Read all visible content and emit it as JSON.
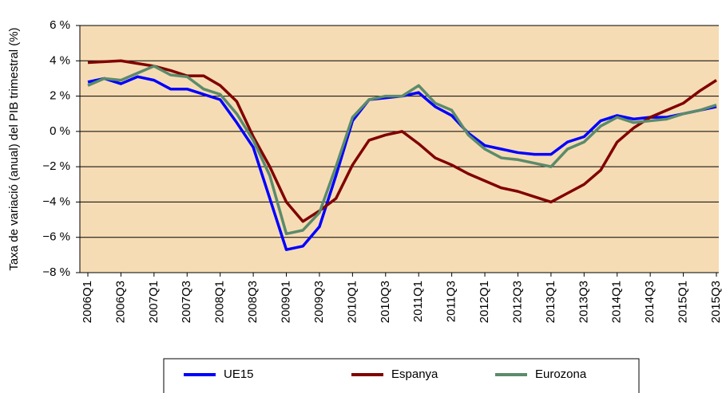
{
  "chart_data": {
    "type": "line",
    "y_label": "Taxa de variació (anual) del PIB trimestral (%)",
    "categories": [
      "2006Q1",
      null,
      "2006Q3",
      null,
      "2007Q1",
      null,
      "2007Q3",
      null,
      "2008Q1",
      null,
      "2008Q3",
      null,
      "2009Q1",
      null,
      "2009Q3",
      null,
      "2010Q1",
      null,
      "2010Q3",
      null,
      "2011Q1",
      null,
      "2011Q3",
      null,
      "2012Q1",
      null,
      "2012Q3",
      null,
      "2013Q1",
      null,
      "2013Q3",
      null,
      "2014Q1",
      null,
      "2014Q3",
      null,
      "2015Q1",
      null,
      "2015Q3"
    ],
    "series": [
      {
        "name": "UE15",
        "color": "#0000ff",
        "values": [
          2.8,
          3.0,
          2.7,
          3.1,
          2.9,
          2.4,
          2.4,
          2.1,
          1.8,
          0.5,
          -0.9,
          -3.8,
          -6.7,
          -6.5,
          -5.4,
          -2.5,
          0.6,
          1.8,
          1.9,
          2.0,
          2.2,
          1.4,
          0.9,
          -0.1,
          -0.8,
          -1.0,
          -1.2,
          -1.3,
          -1.3,
          -0.6,
          -0.3,
          0.6,
          0.9,
          0.7,
          0.8,
          0.8,
          1.0,
          1.2,
          1.4
        ]
      },
      {
        "name": "Espanya",
        "color": "#800000",
        "values": [
          3.9,
          3.95,
          4.0,
          3.85,
          3.7,
          3.45,
          3.15,
          3.15,
          2.6,
          1.7,
          -0.3,
          -2.0,
          -4.0,
          -5.1,
          -4.5,
          -3.8,
          -1.9,
          -0.5,
          -0.2,
          0.0,
          -0.7,
          -1.5,
          -1.9,
          -2.4,
          -2.8,
          -3.2,
          -3.4,
          -3.7,
          -4.0,
          -3.5,
          -3.0,
          -2.2,
          -0.6,
          0.2,
          0.8,
          1.2,
          1.6,
          2.3,
          2.9
        ]
      },
      {
        "name": "Eurozona",
        "color": "#5b8b6b",
        "values": [
          2.6,
          3.0,
          2.9,
          3.3,
          3.7,
          3.2,
          3.1,
          2.4,
          2.1,
          1.0,
          -0.5,
          -2.5,
          -5.8,
          -5.6,
          -4.6,
          -2.0,
          0.8,
          1.8,
          2.0,
          2.0,
          2.6,
          1.6,
          1.2,
          -0.2,
          -1.0,
          -1.5,
          -1.6,
          -1.8,
          -2.0,
          -1.0,
          -0.6,
          0.3,
          0.8,
          0.5,
          0.6,
          0.7,
          1.0,
          1.2,
          1.5
        ]
      }
    ],
    "ylim": [
      -8,
      6
    ],
    "yticks": [
      {
        "value": -8,
        "label": "−8 %"
      },
      {
        "value": -6,
        "label": "−6 %"
      },
      {
        "value": -4,
        "label": "−4 %"
      },
      {
        "value": -2,
        "label": "−2 %"
      },
      {
        "value": 0,
        "label": "0 %"
      },
      {
        "value": 2,
        "label": "2 %"
      },
      {
        "value": 4,
        "label": "4 %"
      },
      {
        "value": 6,
        "label": "6 %"
      }
    ],
    "grid": true,
    "background": "#f6dcb4",
    "legend": "bottom"
  }
}
